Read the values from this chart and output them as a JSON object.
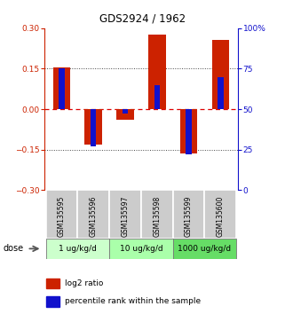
{
  "title": "GDS2924 / 1962",
  "samples": [
    "GSM135595",
    "GSM135596",
    "GSM135597",
    "GSM135598",
    "GSM135599",
    "GSM135600"
  ],
  "log2_ratios": [
    0.155,
    -0.13,
    -0.038,
    0.275,
    -0.163,
    0.258
  ],
  "percentile_ranks": [
    75,
    27,
    47,
    65,
    22,
    70
  ],
  "dose_groups": [
    {
      "label": "1 ug/kg/d",
      "color": "#ccffcc"
    },
    {
      "label": "10 ug/kg/d",
      "color": "#aaffaa"
    },
    {
      "label": "1000 ug/kg/d",
      "color": "#66dd66"
    }
  ],
  "ylim": [
    -0.3,
    0.3
  ],
  "yticks_left": [
    -0.3,
    -0.15,
    0,
    0.15,
    0.3
  ],
  "yticks_right_vals": [
    0,
    25,
    50,
    75,
    100
  ],
  "yticks_right_labels": [
    "0",
    "25",
    "50",
    "75",
    "100%"
  ],
  "bar_color_red": "#cc2200",
  "bar_color_blue": "#1111cc",
  "bar_width": 0.55,
  "blue_bar_width": 0.18,
  "hline_0_color": "#dd0000",
  "hline_dotted_color": "#444444",
  "sample_box_color": "#cccccc",
  "bg_color": "#ffffff",
  "title_fontsize": 8.5
}
